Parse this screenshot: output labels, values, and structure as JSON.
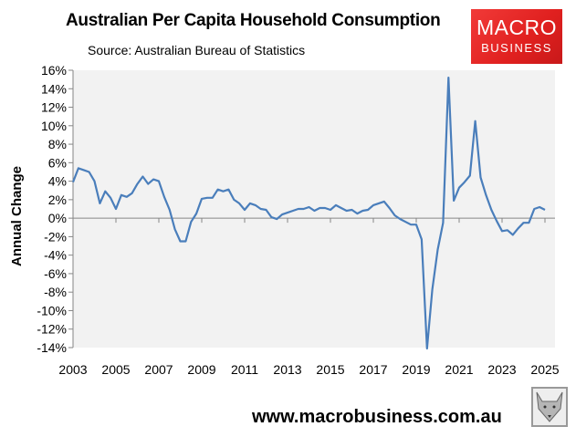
{
  "header": {
    "title": "Australian Per Capita Household Consumption",
    "subtitle": "Source: Australian Bureau of Statistics"
  },
  "logo": {
    "line1": "MACRO",
    "line2": "BUSINESS",
    "color": "#e52521"
  },
  "footer": {
    "url": "www.macrobusiness.com.au"
  },
  "colors": {
    "line": "#4a7ebb",
    "plot_bg": "#f2f2f2",
    "axis": "#868686"
  },
  "chart_data": {
    "type": "line",
    "title": "Australian Per Capita Household Consumption",
    "subtitle": "Source: Australian Bureau of Statistics",
    "xlabel": "",
    "ylabel": "Annual Change",
    "ylim": [
      -14,
      16
    ],
    "y_ticks": [
      "16%",
      "14%",
      "12%",
      "10%",
      "8%",
      "6%",
      "4%",
      "2%",
      "0%",
      "-2%",
      "-4%",
      "-6%",
      "-8%",
      "-10%",
      "-12%",
      "-14%"
    ],
    "x_ticks": [
      "2003",
      "2005",
      "2007",
      "2009",
      "2011",
      "2013",
      "2015",
      "2017",
      "2019",
      "2021",
      "2023",
      "2025"
    ],
    "grid": false,
    "legend": "none",
    "frequency": "quarterly",
    "start": "2003",
    "series": [
      {
        "name": "Annual Change",
        "values": [
          3.9,
          5.4,
          5.2,
          5.0,
          4.0,
          1.6,
          2.9,
          2.2,
          1.0,
          2.5,
          2.3,
          2.7,
          3.7,
          4.5,
          3.7,
          4.2,
          4.0,
          2.3,
          0.9,
          -1.2,
          -2.5,
          -2.5,
          -0.4,
          0.5,
          2.1,
          2.2,
          2.2,
          3.1,
          2.9,
          3.1,
          2.0,
          1.6,
          0.9,
          1.6,
          1.4,
          1.0,
          0.9,
          0.1,
          -0.1,
          0.4,
          0.6,
          0.8,
          1.0,
          1.0,
          1.2,
          0.8,
          1.1,
          1.1,
          0.9,
          1.4,
          1.1,
          0.8,
          0.9,
          0.5,
          0.8,
          0.9,
          1.4,
          1.6,
          1.8,
          1.1,
          0.3,
          -0.1,
          -0.4,
          -0.7,
          -0.7,
          -2.3,
          -14.1,
          -7.7,
          -3.4,
          -0.5,
          15.2,
          1.9,
          3.3,
          3.9,
          4.6,
          10.5,
          4.4,
          2.5,
          0.9,
          -0.3,
          -1.4,
          -1.3,
          -1.8,
          -1.1,
          -0.5,
          -0.5,
          1.0,
          1.2,
          0.9
        ]
      }
    ]
  }
}
